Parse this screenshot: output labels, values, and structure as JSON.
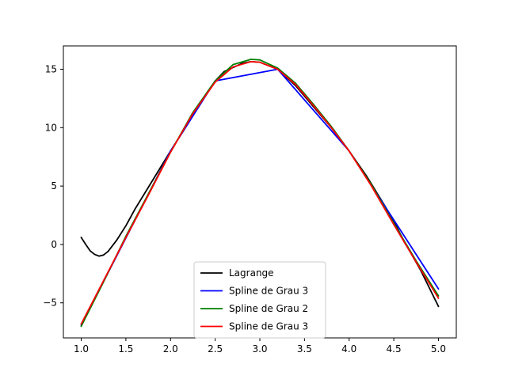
{
  "chart_data": {
    "type": "line",
    "title": "",
    "xlabel": "",
    "ylabel": "",
    "xlim": [
      0.8,
      5.2
    ],
    "ylim": [
      -8.0,
      17.0
    ],
    "x_ticks": [
      1.0,
      1.5,
      2.0,
      2.5,
      3.0,
      3.5,
      4.0,
      4.5,
      5.0
    ],
    "x_tick_labels": [
      "1.0",
      "1.5",
      "2.0",
      "2.5",
      "3.0",
      "3.5",
      "4.0",
      "4.5",
      "5.0"
    ],
    "y_ticks": [
      -5,
      0,
      5,
      10,
      15
    ],
    "y_tick_labels": [
      "−5",
      "0",
      "5",
      "10",
      "15"
    ],
    "grid": false,
    "legend_position": "lower-center",
    "series": [
      {
        "name": "Lagrange",
        "color": "#000000",
        "x": [
          1.0,
          1.05,
          1.1,
          1.15,
          1.2,
          1.25,
          1.3,
          1.35,
          1.4,
          1.5,
          1.6,
          1.8,
          2.0,
          2.2,
          2.4,
          2.5,
          2.6,
          2.8,
          2.9,
          3.0,
          3.2,
          3.4,
          3.6,
          3.8,
          4.0,
          4.2,
          4.4,
          4.5,
          4.6,
          4.8,
          5.0
        ],
        "y": [
          0.6,
          0.0,
          -0.55,
          -0.85,
          -1.0,
          -0.9,
          -0.6,
          -0.1,
          0.4,
          1.6,
          3.0,
          5.5,
          8.0,
          10.4,
          12.9,
          14.0,
          14.8,
          15.5,
          15.65,
          15.6,
          15.0,
          13.6,
          11.8,
          10.0,
          8.0,
          5.8,
          3.3,
          2.0,
          0.5,
          -2.2,
          -5.3
        ]
      },
      {
        "name": "Spline de Grau 3",
        "color": "#0000ff",
        "x": [
          1.0,
          2.0,
          2.5,
          3.2,
          4.0,
          5.0
        ],
        "y": [
          -6.9,
          8.0,
          14.0,
          15.0,
          8.0,
          -3.8
        ]
      },
      {
        "name": "Spline de Grau 2",
        "color": "#008000",
        "x": [
          1.0,
          1.25,
          1.5,
          1.75,
          2.0,
          2.25,
          2.5,
          2.7,
          2.9,
          3.0,
          3.2,
          3.4,
          3.6,
          3.8,
          4.0,
          4.25,
          4.5,
          4.75,
          5.0
        ],
        "y": [
          -7.0,
          -3.2,
          0.7,
          4.3,
          7.9,
          11.3,
          14.0,
          15.4,
          15.85,
          15.8,
          15.1,
          13.8,
          12.0,
          10.1,
          8.0,
          5.1,
          1.8,
          -1.4,
          -4.4
        ]
      },
      {
        "name": "Spline de Grau 3",
        "color": "#ff0000",
        "x": [
          1.0,
          1.25,
          1.5,
          1.75,
          2.0,
          2.25,
          2.5,
          2.7,
          2.9,
          3.0,
          3.2,
          3.4,
          3.6,
          3.8,
          4.0,
          4.25,
          4.5,
          4.75,
          5.0
        ],
        "y": [
          -6.8,
          -3.1,
          0.6,
          4.2,
          7.9,
          11.2,
          13.9,
          15.2,
          15.65,
          15.6,
          15.0,
          13.7,
          11.9,
          10.0,
          8.0,
          5.0,
          1.7,
          -1.5,
          -4.6
        ]
      }
    ]
  }
}
